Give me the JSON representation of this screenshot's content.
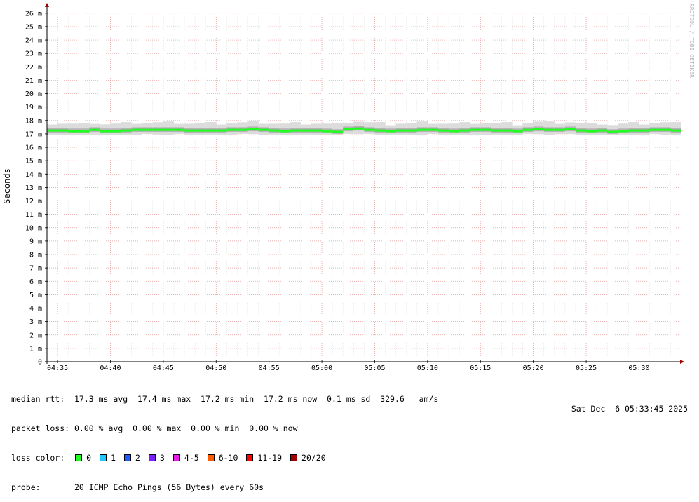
{
  "chart_data": {
    "type": "area",
    "ylabel": "Seconds",
    "y_unit": "ms",
    "y_ticks": [
      "0",
      "1 m",
      "2 m",
      "3 m",
      "4 m",
      "5 m",
      "6 m",
      "7 m",
      "8 m",
      "9 m",
      "10 m",
      "11 m",
      "12 m",
      "13 m",
      "14 m",
      "15 m",
      "16 m",
      "17 m",
      "18 m",
      "19 m",
      "20 m",
      "21 m",
      "22 m",
      "23 m",
      "24 m",
      "25 m",
      "26 m"
    ],
    "ylim": [
      0,
      26.2
    ],
    "x_ticks": [
      "04:35",
      "04:40",
      "04:45",
      "04:50",
      "04:55",
      "05:00",
      "05:05",
      "05:10",
      "05:15",
      "05:20",
      "05:25",
      "05:30"
    ],
    "xlim": [
      "04:34:00",
      "05:33:45"
    ],
    "grid": true,
    "watermark": "RRDTOOL / TOBI OETIKER",
    "median_series": {
      "x": [
        "04:34",
        "04:35",
        "04:36",
        "04:37",
        "04:38",
        "04:39",
        "04:40",
        "04:41",
        "04:42",
        "04:43",
        "04:44",
        "04:45",
        "04:46",
        "04:47",
        "04:48",
        "04:49",
        "04:50",
        "04:51",
        "04:52",
        "04:53",
        "04:54",
        "04:55",
        "04:56",
        "04:57",
        "04:58",
        "04:59",
        "05:00",
        "05:01",
        "05:02",
        "05:03",
        "05:04",
        "05:05",
        "05:06",
        "05:07",
        "05:08",
        "05:09",
        "05:10",
        "05:11",
        "05:12",
        "05:13",
        "05:14",
        "05:15",
        "05:16",
        "05:17",
        "05:18",
        "05:19",
        "05:20",
        "05:21",
        "05:22",
        "05:23",
        "05:24",
        "05:25",
        "05:26",
        "05:27",
        "05:28",
        "05:29",
        "05:30",
        "05:31",
        "05:32",
        "05:33"
      ],
      "values_ms": [
        17.25,
        17.25,
        17.2,
        17.2,
        17.3,
        17.2,
        17.2,
        17.25,
        17.3,
        17.3,
        17.3,
        17.3,
        17.3,
        17.25,
        17.25,
        17.25,
        17.25,
        17.3,
        17.3,
        17.35,
        17.3,
        17.25,
        17.2,
        17.25,
        17.25,
        17.25,
        17.2,
        17.15,
        17.35,
        17.4,
        17.3,
        17.25,
        17.2,
        17.25,
        17.25,
        17.3,
        17.3,
        17.25,
        17.2,
        17.25,
        17.3,
        17.3,
        17.25,
        17.25,
        17.2,
        17.3,
        17.35,
        17.3,
        17.3,
        17.35,
        17.25,
        17.2,
        17.25,
        17.15,
        17.2,
        17.25,
        17.25,
        17.3,
        17.3,
        17.25
      ],
      "loss_color": "#20ff20"
    },
    "smoke_range_ms": {
      "min": 16.9,
      "max": 18.1
    },
    "stats": {
      "median_rtt": "median rtt:  17.3 ms avg  17.4 ms max  17.2 ms min  17.2 ms now  0.1 ms sd  329.6   am/s",
      "packet_loss": "packet loss: 0.00 % avg  0.00 % max  0.00 % min  0.00 % now"
    },
    "loss_legend_label": "loss color:",
    "loss_legend": [
      {
        "label": "0",
        "color": "#20ff20"
      },
      {
        "label": "1",
        "color": "#20c8ff"
      },
      {
        "label": "2",
        "color": "#1e5cff"
      },
      {
        "label": "3",
        "color": "#7a1eff"
      },
      {
        "label": "4-5",
        "color": "#e81ee8"
      },
      {
        "label": "6-10",
        "color": "#ff5a00"
      },
      {
        "label": "11-19",
        "color": "#ff0000"
      },
      {
        "label": "20/20",
        "color": "#a00000"
      }
    ],
    "probe": "probe:       20 ICMP Echo Pings (56 Bytes) every 60s",
    "timestamp": "Sat Dec  6 05:33:45 2025"
  }
}
